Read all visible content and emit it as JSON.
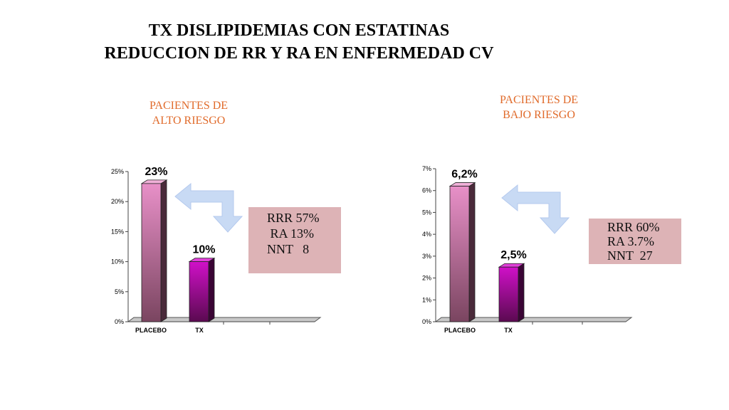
{
  "title": {
    "line1": "TX DISLIPIDEMIAS CON ESTATINAS",
    "line2": "REDUCCION DE RR Y RA EN ENFERMEDAD CV"
  },
  "colors": {
    "subtitle": "#e06a2a",
    "placebo_bar": "#e890c8",
    "tx_bar": "#d010c8",
    "stats_box": "#ddb3b6",
    "arrow": "#c8daf4"
  },
  "chart_data": [
    {
      "type": "bar",
      "subtitle": "PACIENTES DE\nALTO RIESGO",
      "categories": [
        "PLACEBO",
        "TX"
      ],
      "values": [
        23,
        10
      ],
      "data_labels": [
        "23%",
        "10%"
      ],
      "yticks": [
        "0%",
        "5%",
        "10%",
        "15%",
        "20%",
        "25%"
      ],
      "ylim": [
        0,
        25
      ],
      "stats": [
        "RRR 57%",
        " RA 13%",
        "NNT   8"
      ]
    },
    {
      "type": "bar",
      "subtitle": "PACIENTES DE\nBAJO RIESGO",
      "categories": [
        "PLACEBO",
        "TX"
      ],
      "values": [
        6.2,
        2.5
      ],
      "data_labels": [
        "6,2%",
        "2,5%"
      ],
      "yticks": [
        "0%",
        "1%",
        "2%",
        "3%",
        "4%",
        "5%",
        "6%",
        "7%"
      ],
      "ylim": [
        0,
        7
      ],
      "stats": [
        "RRR 60%",
        "RA 3.7%",
        "NNT  27"
      ]
    }
  ]
}
